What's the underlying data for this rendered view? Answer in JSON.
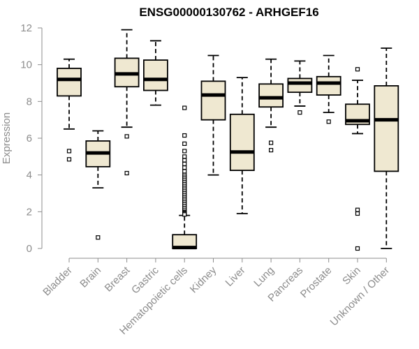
{
  "chart_data": {
    "type": "box",
    "title": "ENSG00000130762 - ARHGEF16",
    "xlabel": "",
    "ylabel": "Expression",
    "ylim": [
      0,
      12
    ],
    "yticks": [
      0,
      2,
      4,
      6,
      8,
      10,
      12
    ],
    "grid": false,
    "legend": "none",
    "colors": {
      "box_fill": "#efe8d1",
      "box_stroke": "#000000",
      "median": "#000000",
      "axis": "#8c8c8c"
    },
    "categories": [
      "Bladder",
      "Brain",
      "Breast",
      "Gastric",
      "Hematopoietic cells",
      "Kidney",
      "Liver",
      "Lung",
      "Pancreas",
      "Prostate",
      "Skin",
      "Unknown / Other"
    ],
    "boxes": [
      {
        "category": "Bladder",
        "whisker_low": 6.5,
        "q1": 8.3,
        "median": 9.2,
        "q3": 9.8,
        "whisker_high": 10.3,
        "outliers": [
          5.3,
          4.85
        ]
      },
      {
        "category": "Brain",
        "whisker_low": 3.3,
        "q1": 4.45,
        "median": 5.2,
        "q3": 5.85,
        "whisker_high": 6.4,
        "outliers": [
          0.6
        ]
      },
      {
        "category": "Breast",
        "whisker_low": 6.6,
        "q1": 8.8,
        "median": 9.5,
        "q3": 10.35,
        "whisker_high": 11.9,
        "outliers": [
          6.1,
          4.1
        ]
      },
      {
        "category": "Gastric",
        "whisker_low": 7.8,
        "q1": 8.6,
        "median": 9.2,
        "q3": 10.25,
        "whisker_high": 11.3,
        "outliers": []
      },
      {
        "category": "Hematopoietic cells",
        "whisker_low": 0.0,
        "q1": 0.0,
        "median": 0.05,
        "q3": 0.75,
        "whisker_high": 1.8,
        "outliers": [
          7.65,
          6.15,
          5.7,
          5.3,
          5.0,
          4.8,
          4.6,
          4.4,
          4.2,
          4.0,
          3.9,
          3.8,
          3.7,
          3.6,
          3.5,
          3.4,
          3.3,
          3.2,
          3.1,
          3.0,
          2.9,
          2.8,
          2.7,
          2.6,
          2.5,
          2.4,
          2.3,
          2.2,
          2.1,
          2.0,
          1.95,
          1.9,
          1.85
        ]
      },
      {
        "category": "Kidney",
        "whisker_low": 4.0,
        "q1": 7.0,
        "median": 8.35,
        "q3": 9.1,
        "whisker_high": 10.5,
        "outliers": []
      },
      {
        "category": "Liver",
        "whisker_low": 1.9,
        "q1": 4.25,
        "median": 5.25,
        "q3": 7.3,
        "whisker_high": 9.3,
        "outliers": []
      },
      {
        "category": "Lung",
        "whisker_low": 6.6,
        "q1": 7.7,
        "median": 8.2,
        "q3": 8.95,
        "whisker_high": 10.3,
        "outliers": [
          5.75,
          5.35
        ]
      },
      {
        "category": "Pancreas",
        "whisker_low": 7.75,
        "q1": 8.5,
        "median": 9.0,
        "q3": 9.25,
        "whisker_high": 10.2,
        "outliers": [
          7.4
        ]
      },
      {
        "category": "Prostate",
        "whisker_low": 7.4,
        "q1": 8.35,
        "median": 9.0,
        "q3": 9.35,
        "whisker_high": 10.5,
        "outliers": [
          6.9
        ]
      },
      {
        "category": "Skin",
        "whisker_low": 6.25,
        "q1": 6.75,
        "median": 6.95,
        "q3": 7.85,
        "whisker_high": 9.15,
        "outliers": [
          9.75,
          2.1,
          1.9,
          0.0
        ]
      },
      {
        "category": "Unknown / Other",
        "whisker_low": 0.0,
        "q1": 4.2,
        "median": 7.0,
        "q3": 8.85,
        "whisker_high": 10.9,
        "outliers": []
      }
    ]
  }
}
